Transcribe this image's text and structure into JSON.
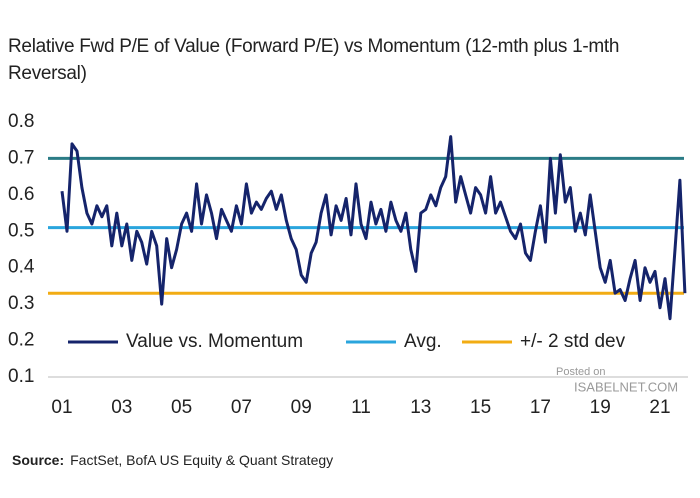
{
  "chart_data": {
    "type": "line",
    "title": "Relative Fwd P/E of Value (Forward P/E) vs Momentum (12-mth plus 1-mth Reversal)",
    "categories": [
      "01",
      null,
      null,
      null,
      null,
      null,
      null,
      null,
      null,
      null,
      null,
      null,
      "03",
      null,
      null,
      null,
      null,
      null,
      null,
      null,
      null,
      null,
      null,
      null,
      "05",
      null,
      null,
      null,
      null,
      null,
      null,
      null,
      null,
      null,
      null,
      null,
      "07",
      null,
      null,
      null,
      null,
      null,
      null,
      null,
      null,
      null,
      null,
      null,
      "09",
      null,
      null,
      null,
      null,
      null,
      null,
      null,
      null,
      null,
      null,
      null,
      "11",
      null,
      null,
      null,
      null,
      null,
      null,
      null,
      null,
      null,
      null,
      null,
      "13",
      null,
      null,
      null,
      null,
      null,
      null,
      null,
      null,
      null,
      null,
      null,
      "15",
      null,
      null,
      null,
      null,
      null,
      null,
      null,
      null,
      null,
      null,
      null,
      "17",
      null,
      null,
      null,
      null,
      null,
      null,
      null,
      null,
      null,
      null,
      null,
      "19",
      null,
      null,
      null,
      null,
      null,
      null,
      null,
      null,
      null,
      null,
      null,
      "21",
      null,
      null,
      null,
      null,
      null
    ],
    "series": [
      {
        "name": "Value vs. Momentum",
        "color": "#15246b",
        "values": [
          0.61,
          0.5,
          0.74,
          0.72,
          0.62,
          0.55,
          0.52,
          0.57,
          0.54,
          0.57,
          0.46,
          0.55,
          0.46,
          0.52,
          0.42,
          0.5,
          0.47,
          0.41,
          0.5,
          0.46,
          0.3,
          0.48,
          0.4,
          0.45,
          0.52,
          0.55,
          0.5,
          0.63,
          0.52,
          0.6,
          0.55,
          0.48,
          0.56,
          0.53,
          0.5,
          0.57,
          0.52,
          0.63,
          0.55,
          0.58,
          0.56,
          0.59,
          0.61,
          0.56,
          0.6,
          0.53,
          0.48,
          0.45,
          0.38,
          0.36,
          0.44,
          0.47,
          0.55,
          0.6,
          0.49,
          0.57,
          0.53,
          0.59,
          0.49,
          0.63,
          0.52,
          0.48,
          0.58,
          0.52,
          0.56,
          0.5,
          0.58,
          0.53,
          0.5,
          0.55,
          0.45,
          0.39,
          0.55,
          0.56,
          0.6,
          0.57,
          0.62,
          0.65,
          0.76,
          0.58,
          0.65,
          0.6,
          0.55,
          0.62,
          0.6,
          0.55,
          0.65,
          0.55,
          0.58,
          0.54,
          0.5,
          0.48,
          0.52,
          0.44,
          0.42,
          0.5,
          0.57,
          0.47,
          0.7,
          0.55,
          0.71,
          0.58,
          0.62,
          0.5,
          0.55,
          0.49,
          0.6,
          0.5,
          0.4,
          0.36,
          0.42,
          0.33,
          0.34,
          0.31,
          0.37,
          0.42,
          0.31,
          0.4,
          0.36,
          0.39,
          0.29,
          0.37,
          0.26,
          0.45,
          0.64,
          0.33
        ]
      }
    ],
    "hlines": [
      {
        "name": "Avg.",
        "color": "#2aa5dd",
        "values": [
          0.51
        ],
        "colors": [
          "#2aa5dd"
        ]
      },
      {
        "name": "+/- 2 std dev",
        "color": "#f2ac13",
        "values": [
          0.33,
          0.7
        ],
        "colors": [
          "#f2ac13",
          "#2b7c86"
        ]
      }
    ],
    "ylim": [
      0.1,
      0.8
    ],
    "yticks": [
      0.1,
      0.2,
      0.3,
      0.4,
      0.5,
      0.6,
      0.7,
      0.8
    ],
    "legend": "lower",
    "source_label": "Source:",
    "source": "FactSet, BofA US Equity & Quant Strategy",
    "watermark": [
      "Posted on",
      "ISABELNET.COM"
    ]
  }
}
